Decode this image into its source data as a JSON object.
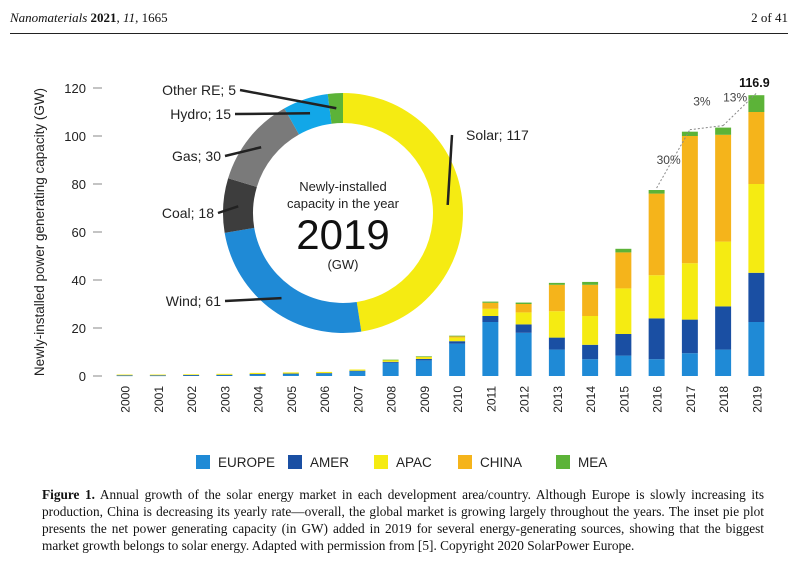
{
  "header": {
    "journal": "Nanomaterials",
    "year": "2021",
    "volume": "11",
    "article": "1665",
    "page": "2 of 41"
  },
  "figure": {
    "caption_label": "Figure 1.",
    "caption_text": "Annual growth of the solar energy market in each development area/country. Although Europe is slowly increasing its production, China is decreasing its yearly rate—overall, the global market is growing largely throughout the years. The inset pie plot presents the net power generating capacity (in GW) added in 2019 for several energy-generating sources, showing that the biggest market growth belongs to solar energy. Adapted with permission from [5]. Copyright 2020 SolarPower Europe."
  },
  "chart_data": [
    {
      "type": "bar",
      "stacked": true,
      "ylabel": "Newly-installed power generating capacity (GW)",
      "ylim": [
        0,
        120
      ],
      "yticks": [
        0,
        20,
        40,
        60,
        80,
        100,
        120
      ],
      "categories": [
        "2000",
        "2001",
        "2002",
        "2003",
        "2004",
        "2005",
        "2006",
        "2007",
        "2008",
        "2009",
        "2010",
        "2011",
        "2012",
        "2013",
        "2014",
        "2015",
        "2016",
        "2017",
        "2018",
        "2019"
      ],
      "series": [
        {
          "name": "EUROPE",
          "color": "#1f8ad6",
          "values": [
            0.2,
            0.2,
            0.3,
            0.4,
            0.7,
            0.9,
            1.0,
            2.0,
            5.5,
            6.5,
            13.5,
            22.5,
            18.0,
            11.0,
            7.0,
            8.5,
            7.0,
            9.5,
            11.0,
            22.5
          ]
        },
        {
          "name": "AMER",
          "color": "#1a4fa3",
          "values": [
            0.1,
            0.1,
            0.1,
            0.1,
            0.1,
            0.1,
            0.2,
            0.2,
            0.4,
            0.6,
            1.0,
            2.5,
            3.5,
            5.0,
            6.0,
            9.0,
            17.0,
            14.0,
            18.0,
            20.5
          ]
        },
        {
          "name": "APAC",
          "color": "#f5eb12",
          "values": [
            0.3,
            0.3,
            0.3,
            0.4,
            0.5,
            0.5,
            0.5,
            0.5,
            0.8,
            0.8,
            1.5,
            3.0,
            5.0,
            11.0,
            12.0,
            19.0,
            18.0,
            23.5,
            27.0,
            37.0
          ]
        },
        {
          "name": "CHINA",
          "color": "#f5b41b",
          "values": [
            0.0,
            0.0,
            0.0,
            0.0,
            0.0,
            0.0,
            0.0,
            0.0,
            0.0,
            0.2,
            0.5,
            2.5,
            3.5,
            11.0,
            13.0,
            15.0,
            34.0,
            53.0,
            44.5,
            30.0
          ]
        },
        {
          "name": "MEA",
          "color": "#5cb338",
          "values": [
            0.0,
            0.0,
            0.0,
            0.0,
            0.0,
            0.0,
            0.0,
            0.0,
            0.1,
            0.1,
            0.3,
            0.5,
            0.6,
            0.8,
            1.2,
            1.5,
            1.5,
            1.8,
            3.0,
            7.0
          ]
        }
      ],
      "annotations": [
        {
          "category": "2019",
          "text": "116.9"
        },
        {
          "category": "2016",
          "text": "30%"
        },
        {
          "category": "2017",
          "text": "3%"
        },
        {
          "category": "2018",
          "text": "13%"
        }
      ],
      "legend_position": "bottom"
    },
    {
      "type": "pie",
      "donut": true,
      "center_text_1": "Newly-installed",
      "center_text_2": "capacity in the year",
      "center_year": "2019",
      "center_unit": "(GW)",
      "slices": [
        {
          "label": "Solar; 117",
          "value": 117,
          "color": "#f5eb12"
        },
        {
          "label": "Wind; 61",
          "value": 61,
          "color": "#1f8ad6"
        },
        {
          "label": "Coal; 18",
          "value": 18,
          "color": "#3d3d3d"
        },
        {
          "label": "Gas; 30",
          "value": 30,
          "color": "#7a7a7a"
        },
        {
          "label": "Hydro; 15",
          "value": 15,
          "color": "#12a7e8"
        },
        {
          "label": "Other RE; 5",
          "value": 5,
          "color": "#5cb338"
        }
      ]
    }
  ]
}
